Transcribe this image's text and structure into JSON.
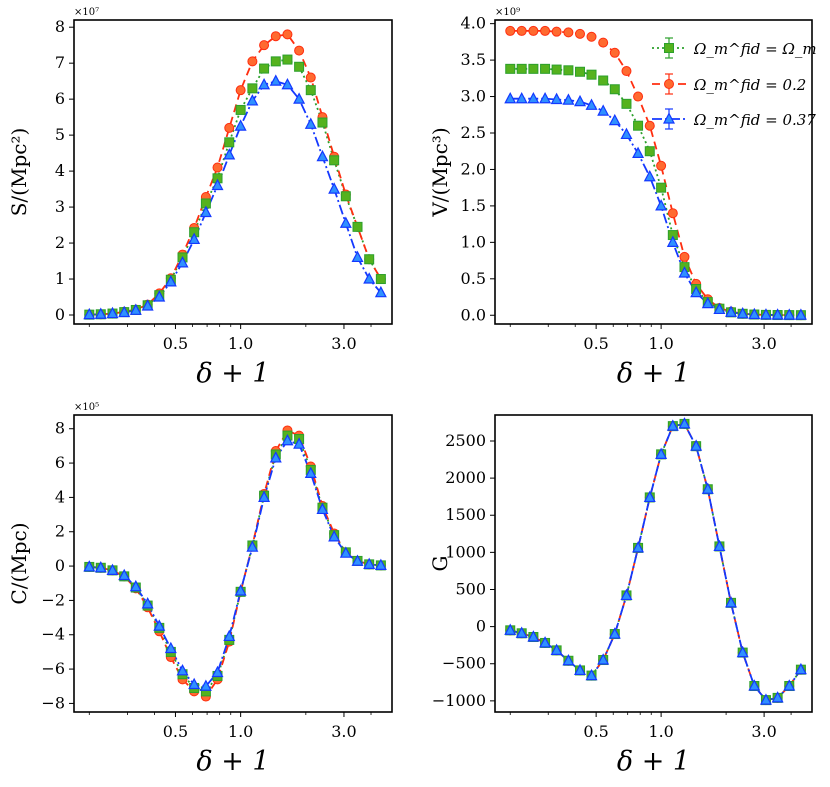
{
  "figure_title": "",
  "colors": {
    "fiducial": "#2ca02c",
    "fiducial_fill": "#55b21e",
    "low": "#ff2e10",
    "low_fill": "#ff6a30",
    "high": "#1438ff",
    "high_fill": "#2f90ff"
  },
  "legend_entries": [
    "Ω_m^fid = Ω_m",
    "Ω_m^fid = 0.2",
    "Ω_m^fid = 0.37"
  ],
  "chart_data": [
    {
      "type": "line",
      "id": "S",
      "xlabel": "δ + 1",
      "ylabel": "S/(Mpc²)",
      "multiplier": "×10⁷",
      "xscale": "log",
      "xlim": [
        0.17,
        5.0
      ],
      "ylim": [
        -0.25,
        8.2
      ],
      "xticks": [
        0.5,
        1.0,
        3.0
      ],
      "xtick_labels": [
        "0.5",
        "1.0",
        "3.0"
      ],
      "yticks": [
        0,
        1,
        2,
        3,
        4,
        5,
        6,
        7,
        8
      ],
      "ytick_labels": [
        "0",
        "1",
        "2",
        "3",
        "4",
        "5",
        "6",
        "7",
        "8"
      ],
      "x": [
        0.2,
        0.226,
        0.256,
        0.29,
        0.328,
        0.372,
        0.421,
        0.476,
        0.539,
        0.61,
        0.691,
        0.782,
        0.886,
        1.0,
        1.133,
        1.283,
        1.453,
        1.645,
        1.862,
        2.108,
        2.387,
        2.703,
        3.06,
        3.465,
        3.923,
        4.442
      ],
      "series": [
        {
          "name": "Ω_m^fid = Ω_m",
          "values": [
            0.01,
            0.02,
            0.04,
            0.08,
            0.14,
            0.27,
            0.55,
            0.98,
            1.6,
            2.3,
            3.1,
            3.8,
            4.8,
            5.7,
            6.3,
            6.85,
            7.05,
            7.1,
            6.9,
            6.25,
            5.35,
            4.3,
            3.3,
            2.45,
            1.55,
            1.0
          ]
        },
        {
          "name": "Ω_m^fid = 0.2",
          "values": [
            0.01,
            0.02,
            0.04,
            0.09,
            0.15,
            0.29,
            0.6,
            1.02,
            1.68,
            2.42,
            3.28,
            4.1,
            5.2,
            6.25,
            7.05,
            7.5,
            7.75,
            7.8,
            7.35,
            6.6,
            5.5,
            4.4,
            3.35,
            2.45,
            1.55,
            1.0
          ]
        },
        {
          "name": "Ω_m^fid = 0.37",
          "values": [
            0.01,
            0.02,
            0.04,
            0.07,
            0.13,
            0.25,
            0.5,
            0.92,
            1.45,
            2.1,
            2.85,
            3.6,
            4.45,
            5.25,
            5.95,
            6.4,
            6.5,
            6.4,
            6.0,
            5.3,
            4.4,
            3.5,
            2.55,
            1.6,
            1.0,
            0.62
          ]
        }
      ]
    },
    {
      "type": "line",
      "id": "V",
      "xlabel": "δ + 1",
      "ylabel": "V/(Mpc³)",
      "multiplier": "×10⁹",
      "xscale": "log",
      "xlim": [
        0.17,
        5.0
      ],
      "ylim": [
        -0.12,
        4.05
      ],
      "xticks": [
        0.5,
        1.0,
        3.0
      ],
      "xtick_labels": [
        "0.5",
        "1.0",
        "3.0"
      ],
      "yticks": [
        0,
        0.5,
        1,
        1.5,
        2,
        2.5,
        3,
        3.5,
        4
      ],
      "ytick_labels": [
        "0.0",
        "0.5",
        "1.0",
        "1.5",
        "2.0",
        "2.5",
        "3.0",
        "3.5",
        "4.0"
      ],
      "x": [
        0.2,
        0.226,
        0.256,
        0.29,
        0.328,
        0.372,
        0.421,
        0.476,
        0.539,
        0.61,
        0.691,
        0.782,
        0.886,
        1.0,
        1.133,
        1.283,
        1.453,
        1.645,
        1.862,
        2.108,
        2.387,
        2.703,
        3.06,
        3.465,
        3.923,
        4.442
      ],
      "series": [
        {
          "name": "Ω_m^fid = Ω_m",
          "values": [
            3.38,
            3.38,
            3.38,
            3.38,
            3.37,
            3.36,
            3.34,
            3.3,
            3.22,
            3.1,
            2.9,
            2.6,
            2.25,
            1.75,
            1.1,
            0.66,
            0.36,
            0.18,
            0.09,
            0.04,
            0.02,
            0.01,
            0.005,
            0.003,
            0.002,
            0.001
          ]
        },
        {
          "name": "Ω_m^fid = 0.2",
          "values": [
            3.9,
            3.9,
            3.9,
            3.9,
            3.89,
            3.88,
            3.86,
            3.82,
            3.74,
            3.6,
            3.35,
            3.0,
            2.6,
            2.05,
            1.4,
            0.8,
            0.43,
            0.22,
            0.1,
            0.05,
            0.02,
            0.01,
            0.005,
            0.003,
            0.002,
            0.001
          ]
        },
        {
          "name": "Ω_m^fid = 0.37",
          "values": [
            2.97,
            2.97,
            2.97,
            2.97,
            2.96,
            2.95,
            2.93,
            2.88,
            2.8,
            2.67,
            2.48,
            2.22,
            1.9,
            1.5,
            1.0,
            0.58,
            0.31,
            0.16,
            0.08,
            0.04,
            0.02,
            0.01,
            0.005,
            0.003,
            0.002,
            0.001
          ]
        }
      ]
    },
    {
      "type": "line",
      "id": "C",
      "xlabel": "δ + 1",
      "ylabel": "C/(Mpc)",
      "multiplier": "×10⁵",
      "xscale": "log",
      "xlim": [
        0.17,
        5.0
      ],
      "ylim": [
        -8.5,
        8.8
      ],
      "xticks": [
        0.5,
        1.0,
        3.0
      ],
      "xtick_labels": [
        "0.5",
        "1.0",
        "3.0"
      ],
      "yticks": [
        -8,
        -6,
        -4,
        -2,
        0,
        2,
        4,
        6,
        8
      ],
      "ytick_labels": [
        "−8",
        "−6",
        "−4",
        "−2",
        "0",
        "2",
        "4",
        "6",
        "8"
      ],
      "x": [
        0.2,
        0.226,
        0.256,
        0.29,
        0.328,
        0.372,
        0.421,
        0.476,
        0.539,
        0.61,
        0.691,
        0.782,
        0.886,
        1.0,
        1.133,
        1.283,
        1.453,
        1.645,
        1.862,
        2.108,
        2.387,
        2.703,
        3.06,
        3.465,
        3.923,
        4.442
      ],
      "series": [
        {
          "name": "Ω_m^fid = Ω_m",
          "values": [
            -0.05,
            -0.1,
            -0.25,
            -0.6,
            -1.25,
            -2.3,
            -3.6,
            -5.0,
            -6.3,
            -7.1,
            -7.3,
            -6.4,
            -4.3,
            -1.5,
            1.2,
            4.1,
            6.5,
            7.6,
            7.4,
            5.6,
            3.4,
            1.8,
            0.8,
            0.3,
            0.1,
            0.04
          ]
        },
        {
          "name": "Ω_m^fid = 0.2",
          "values": [
            -0.05,
            -0.1,
            -0.25,
            -0.6,
            -1.3,
            -2.4,
            -3.8,
            -5.3,
            -6.6,
            -7.3,
            -7.6,
            -6.6,
            -4.4,
            -1.5,
            1.2,
            4.2,
            6.7,
            7.9,
            7.6,
            5.8,
            3.5,
            1.9,
            0.8,
            0.3,
            0.1,
            0.04
          ]
        },
        {
          "name": "Ω_m^fid = 0.37",
          "values": [
            -0.05,
            -0.1,
            -0.25,
            -0.55,
            -1.2,
            -2.2,
            -3.5,
            -4.8,
            -6.1,
            -6.9,
            -7.0,
            -6.2,
            -4.1,
            -1.45,
            1.1,
            4.0,
            6.3,
            7.3,
            7.1,
            5.4,
            3.3,
            1.7,
            0.75,
            0.28,
            0.1,
            0.04
          ]
        }
      ]
    },
    {
      "type": "line",
      "id": "G",
      "xlabel": "δ + 1",
      "ylabel": "G",
      "multiplier": "",
      "xscale": "log",
      "xlim": [
        0.17,
        5.0
      ],
      "ylim": [
        -1150,
        2850
      ],
      "xticks": [
        0.5,
        1.0,
        3.0
      ],
      "xtick_labels": [
        "0.5",
        "1.0",
        "3.0"
      ],
      "yticks": [
        -1000,
        -500,
        0,
        500,
        1000,
        1500,
        2000,
        2500
      ],
      "ytick_labels": [
        "−1000",
        "−500",
        "0",
        "500",
        "1000",
        "1500",
        "2000",
        "2500"
      ],
      "x": [
        0.2,
        0.226,
        0.256,
        0.29,
        0.328,
        0.372,
        0.421,
        0.476,
        0.539,
        0.61,
        0.691,
        0.782,
        0.886,
        1.0,
        1.133,
        1.283,
        1.453,
        1.645,
        1.862,
        2.108,
        2.387,
        2.703,
        3.06,
        3.465,
        3.923,
        4.442
      ],
      "series": [
        {
          "name": "Ω_m^fid = Ω_m",
          "values": [
            -50,
            -90,
            -140,
            -220,
            -320,
            -460,
            -590,
            -660,
            -450,
            -100,
            420,
            1060,
            1740,
            2320,
            2700,
            2730,
            2430,
            1850,
            1080,
            320,
            -350,
            -800,
            -990,
            -960,
            -800,
            -580
          ]
        },
        {
          "name": "Ω_m^fid = 0.2",
          "values": [
            -50,
            -90,
            -140,
            -220,
            -320,
            -460,
            -590,
            -660,
            -450,
            -100,
            420,
            1060,
            1740,
            2320,
            2700,
            2730,
            2430,
            1850,
            1080,
            320,
            -350,
            -800,
            -990,
            -960,
            -800,
            -580
          ]
        },
        {
          "name": "Ω_m^fid = 0.37",
          "values": [
            -50,
            -90,
            -140,
            -220,
            -320,
            -460,
            -590,
            -660,
            -450,
            -100,
            420,
            1060,
            1740,
            2320,
            2700,
            2730,
            2430,
            1850,
            1080,
            320,
            -350,
            -800,
            -990,
            -960,
            -800,
            -580
          ]
        }
      ]
    }
  ]
}
